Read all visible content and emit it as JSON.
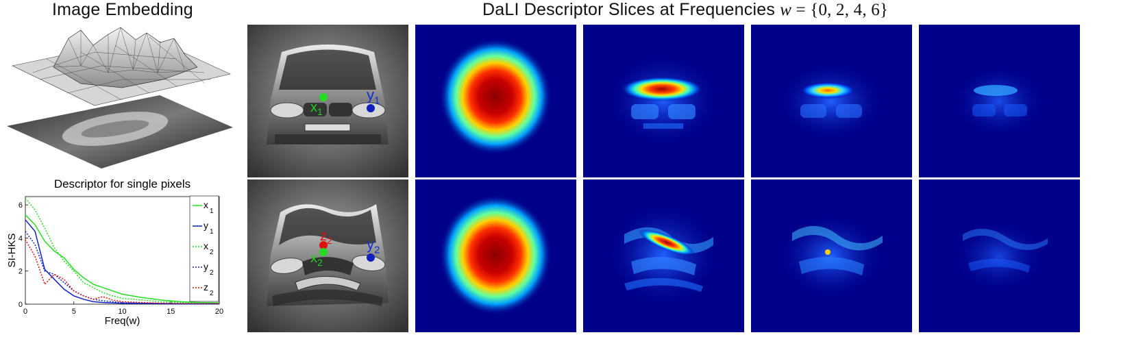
{
  "titles": {
    "embedding": "Image Embedding",
    "slices_prefix": "DaLI Descriptor Slices at Frequencies",
    "slices_math_var": "w",
    "slices_math_eq": " = {0, 2, 4, 6}"
  },
  "point_labels": {
    "top": [
      {
        "text": "x",
        "sub": "1",
        "color": "#22cc22"
      },
      {
        "text": "y",
        "sub": "1",
        "color": "#1030d0"
      }
    ],
    "bottom": [
      {
        "text": "z",
        "sub": "2",
        "color": "#e01010"
      },
      {
        "text": "x",
        "sub": "2",
        "color": "#22cc22"
      },
      {
        "text": "y",
        "sub": "2",
        "color": "#1030d0"
      }
    ]
  },
  "colors": {
    "x": "#22dd22",
    "y": "#1020c0",
    "z": "#e01010",
    "heat_bg": "#00008a"
  },
  "chart_data": {
    "type": "line",
    "title": "Descriptor for single pixels",
    "xlabel": "Freq(w)",
    "ylabel": "SI-HKS",
    "xlim": [
      0,
      20
    ],
    "ylim": [
      0,
      6.5
    ],
    "xticks": [
      0,
      5,
      10,
      15,
      20
    ],
    "yticks": [
      0,
      2,
      4,
      6
    ],
    "legend_position": "top-right",
    "series": [
      {
        "name": "x",
        "sub": "1",
        "color": "#22dd22",
        "dash": false,
        "x": [
          0,
          1,
          2,
          3,
          4,
          5,
          6,
          7,
          8,
          9,
          10,
          12,
          14,
          16,
          18,
          20
        ],
        "y": [
          5.4,
          4.8,
          3.8,
          3.2,
          2.8,
          2.1,
          1.6,
          1.2,
          1.0,
          0.8,
          0.6,
          0.4,
          0.25,
          0.15,
          0.1,
          0.08
        ]
      },
      {
        "name": "y",
        "sub": "1",
        "color": "#1020c0",
        "dash": false,
        "x": [
          0,
          1,
          2,
          3,
          4,
          5,
          6,
          7,
          8,
          9,
          10,
          12,
          14,
          16,
          18,
          20
        ],
        "y": [
          5.1,
          4.4,
          2.1,
          1.5,
          0.9,
          0.5,
          0.3,
          0.15,
          0.1,
          0.08,
          0.05,
          0.04,
          0.03,
          0.02,
          0.02,
          0.02
        ]
      },
      {
        "name": "x",
        "sub": "2",
        "color": "#22dd22",
        "dash": true,
        "x": [
          0,
          1,
          2,
          3,
          4,
          5,
          6,
          7,
          8,
          9,
          10,
          12,
          14,
          16,
          18,
          20
        ],
        "y": [
          6.4,
          5.7,
          4.6,
          3.4,
          2.6,
          2.0,
          1.3,
          1.0,
          0.7,
          0.5,
          0.35,
          0.25,
          0.15,
          0.1,
          0.08,
          0.06
        ]
      },
      {
        "name": "y",
        "sub": "2",
        "color": "#1020c0",
        "dash": true,
        "x": [
          0,
          1,
          2,
          3,
          4,
          5,
          6,
          7,
          8,
          9,
          10,
          12,
          14,
          16,
          18,
          20
        ],
        "y": [
          4.4,
          3.6,
          2.0,
          1.8,
          1.3,
          0.8,
          0.5,
          0.3,
          0.2,
          0.15,
          0.1,
          0.06,
          0.04,
          0.03,
          0.02,
          0.02
        ]
      },
      {
        "name": "z",
        "sub": "2",
        "color": "#e01010",
        "dash": true,
        "x": [
          0,
          1,
          2,
          3,
          4,
          5,
          6,
          7,
          8,
          9,
          10,
          12,
          14,
          16,
          18,
          20
        ],
        "y": [
          3.9,
          2.9,
          1.2,
          1.8,
          1.5,
          0.8,
          0.5,
          0.3,
          0.45,
          0.25,
          0.15,
          0.1,
          0.06,
          0.04,
          0.03,
          0.03
        ]
      }
    ]
  }
}
